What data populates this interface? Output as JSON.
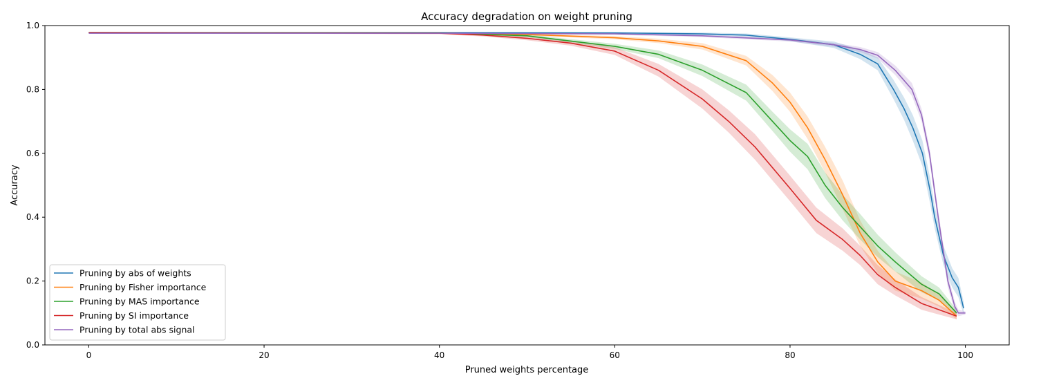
{
  "chart_data": {
    "type": "line",
    "title": "Accuracy degradation on weight pruning",
    "xlabel": "Pruned weights percentage",
    "ylabel": "Accuracy",
    "xlim": [
      -5,
      105
    ],
    "ylim": [
      0,
      1.0
    ],
    "xticks": [
      0,
      20,
      40,
      60,
      80,
      100
    ],
    "yticks": [
      0.0,
      0.2,
      0.4,
      0.6,
      0.8,
      1.0
    ],
    "xtick_labels": [
      "0",
      "20",
      "40",
      "60",
      "80",
      "100"
    ],
    "ytick_labels": [
      "0.0",
      "0.2",
      "0.4",
      "0.6",
      "0.8",
      "1.0"
    ],
    "grid": false,
    "legend_position": "lower-left",
    "shaded_band": "variability band around each line",
    "series": [
      {
        "name": "Pruning by abs of weights",
        "color": "#1f77b4",
        "x": [
          0,
          40,
          60,
          70,
          75,
          80,
          85,
          88,
          90,
          91.8,
          93,
          94,
          95.1,
          96,
          96.5,
          97.5,
          98.5,
          99.2,
          99.8
        ],
        "y": [
          0.978,
          0.978,
          0.977,
          0.974,
          0.97,
          0.957,
          0.94,
          0.91,
          0.88,
          0.8,
          0.74,
          0.68,
          0.6,
          0.48,
          0.4,
          0.28,
          0.21,
          0.18,
          0.115
        ],
        "band": [
          0.002,
          0.002,
          0.003,
          0.004,
          0.005,
          0.006,
          0.01,
          0.015,
          0.02,
          0.03,
          0.035,
          0.04,
          0.04,
          0.04,
          0.035,
          0.03,
          0.03,
          0.03,
          0.02
        ]
      },
      {
        "name": "Pruning by Fisher importance",
        "color": "#ff7f0e",
        "x": [
          0,
          40,
          50,
          60,
          65,
          70,
          75,
          78,
          80,
          82,
          84,
          86,
          88,
          90,
          92,
          95,
          97,
          99
        ],
        "y": [
          0.978,
          0.977,
          0.972,
          0.962,
          0.952,
          0.935,
          0.89,
          0.82,
          0.76,
          0.68,
          0.58,
          0.47,
          0.35,
          0.26,
          0.2,
          0.17,
          0.14,
          0.09
        ],
        "band": [
          0.002,
          0.002,
          0.003,
          0.005,
          0.007,
          0.01,
          0.015,
          0.025,
          0.03,
          0.035,
          0.04,
          0.045,
          0.04,
          0.035,
          0.03,
          0.025,
          0.02,
          0.01
        ]
      },
      {
        "name": "Pruning by MAS importance",
        "color": "#2ca02c",
        "x": [
          0,
          40,
          50,
          60,
          65,
          70,
          75,
          78,
          80,
          82,
          84,
          86,
          88,
          90,
          92,
          95,
          97,
          99
        ],
        "y": [
          0.978,
          0.977,
          0.968,
          0.935,
          0.91,
          0.86,
          0.79,
          0.7,
          0.64,
          0.59,
          0.5,
          0.43,
          0.37,
          0.31,
          0.26,
          0.19,
          0.16,
          0.1
        ],
        "band": [
          0.002,
          0.002,
          0.004,
          0.008,
          0.012,
          0.018,
          0.025,
          0.03,
          0.035,
          0.04,
          0.04,
          0.04,
          0.04,
          0.035,
          0.03,
          0.025,
          0.02,
          0.01
        ]
      },
      {
        "name": "Pruning by SI importance",
        "color": "#d62728",
        "x": [
          0,
          40,
          45,
          50,
          55,
          60,
          65,
          70,
          73,
          76,
          80,
          83,
          86,
          88,
          90,
          92,
          95,
          97,
          99
        ],
        "y": [
          0.978,
          0.976,
          0.97,
          0.96,
          0.945,
          0.92,
          0.86,
          0.77,
          0.7,
          0.62,
          0.49,
          0.39,
          0.33,
          0.28,
          0.22,
          0.18,
          0.13,
          0.11,
          0.09
        ],
        "band": [
          0.002,
          0.003,
          0.004,
          0.006,
          0.008,
          0.012,
          0.02,
          0.03,
          0.035,
          0.04,
          0.04,
          0.04,
          0.035,
          0.03,
          0.03,
          0.025,
          0.02,
          0.015,
          0.01
        ]
      },
      {
        "name": "Pruning by total abs signal",
        "color": "#9467bd",
        "x": [
          0,
          40,
          60,
          70,
          80,
          85,
          88,
          90,
          92,
          93.9,
          95,
          95.9,
          96.9,
          98,
          98.8,
          99.2,
          100
        ],
        "y": [
          0.976,
          0.976,
          0.974,
          0.968,
          0.955,
          0.94,
          0.925,
          0.907,
          0.86,
          0.8,
          0.72,
          0.6,
          0.4,
          0.2,
          0.12,
          0.1,
          0.1
        ],
        "band": [
          0.002,
          0.002,
          0.003,
          0.004,
          0.005,
          0.006,
          0.008,
          0.01,
          0.015,
          0.02,
          0.02,
          0.02,
          0.02,
          0.02,
          0.015,
          0.01,
          0.005
        ]
      }
    ]
  }
}
